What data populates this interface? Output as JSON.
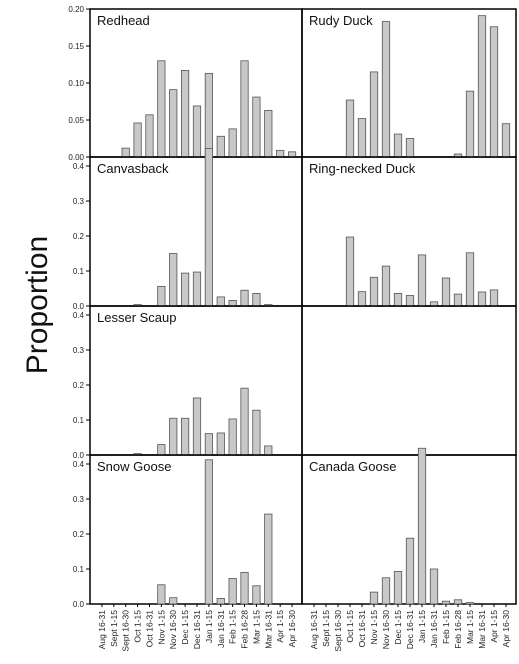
{
  "figure": {
    "ylabel": "Proportion",
    "bar_color": "#c8c8c8",
    "bar_stroke": "#555555",
    "frame_color": "#000000"
  },
  "chart_data": {
    "type": "bar",
    "ylabel": "Proportion",
    "categories": [
      "Aug 16-31",
      "Sept 1-15",
      "Sept 16-30",
      "Oct 1-15",
      "Oct 16-31",
      "Nov 1-15",
      "Nov 16-30",
      "Dec 1-15",
      "Dec 16-31",
      "Jan 1-15",
      "Jan 16-31",
      "Feb 1-15",
      "Feb 16-28",
      "Mar 1-15",
      "Mar 16-31",
      "Apr 1-15",
      "Apr 16-30"
    ],
    "panels": [
      {
        "title": "Redhead",
        "ylim": [
          0,
          0.2
        ],
        "yticks": [
          "0.00",
          "0.05",
          "0.10",
          "0.15",
          "0.20"
        ],
        "values": [
          0,
          0,
          0.012,
          0.046,
          0.057,
          0.13,
          0.091,
          0.117,
          0.069,
          0.113,
          0.028,
          0.038,
          0.13,
          0.081,
          0.063,
          0.009,
          0.007
        ]
      },
      {
        "title": "Rudy Duck",
        "ylim": [
          0,
          0.2
        ],
        "yticks": [],
        "values": [
          0,
          0,
          0,
          0.077,
          0.052,
          0.115,
          0.183,
          0.031,
          0.025,
          0,
          0,
          0,
          0.004,
          0.089,
          0.191,
          0.176,
          0.045
        ]
      },
      {
        "title": "Canvasback",
        "ylim": [
          0,
          0.47
        ],
        "yticks": [
          "0.0",
          "0.1",
          "0.2",
          "0.3",
          "0.4"
        ],
        "values": [
          0,
          0,
          0,
          0.004,
          0,
          0.056,
          0.15,
          0.094,
          0.097,
          0.45,
          0.026,
          0.016,
          0.045,
          0.036,
          0.004,
          0,
          0
        ]
      },
      {
        "title": "Ring-necked Duck",
        "ylim": [
          0,
          0.47
        ],
        "yticks": [],
        "values": [
          0,
          0,
          0,
          0.197,
          0.041,
          0.082,
          0.114,
          0.036,
          0.03,
          0.146,
          0.012,
          0.08,
          0.034,
          0.152,
          0.04,
          0.046,
          0
        ]
      },
      {
        "title": "Lesser Scaup",
        "ylim": [
          0,
          0.47
        ],
        "yticks": [
          "0.0",
          "0.1",
          "0.2",
          "0.3",
          "0.4"
        ],
        "values": [
          0,
          0,
          0,
          0.004,
          0,
          0.03,
          0.105,
          0.105,
          0.163,
          0.061,
          0.063,
          0.103,
          0.191,
          0.128,
          0.026,
          0,
          0
        ]
      },
      {
        "title": "",
        "ylim": [
          0,
          0.47
        ],
        "yticks": [],
        "values": []
      },
      {
        "title": "Snow Goose",
        "ylim": [
          0,
          0.47
        ],
        "yticks": [
          "0.0",
          "0.1",
          "0.2",
          "0.3",
          "0.4"
        ],
        "values": [
          0,
          0,
          0,
          0,
          0,
          0.055,
          0.018,
          0,
          0,
          0.412,
          0.016,
          0.073,
          0.09,
          0.052,
          0.257,
          0,
          0
        ]
      },
      {
        "title": "Canada Goose",
        "ylim": [
          0,
          0.47
        ],
        "yticks": [],
        "values": [
          0,
          0,
          0,
          0,
          0,
          0.034,
          0.075,
          0.093,
          0.188,
          0.445,
          0.1,
          0.008,
          0.012,
          0.004,
          0,
          0,
          0
        ]
      }
    ]
  }
}
